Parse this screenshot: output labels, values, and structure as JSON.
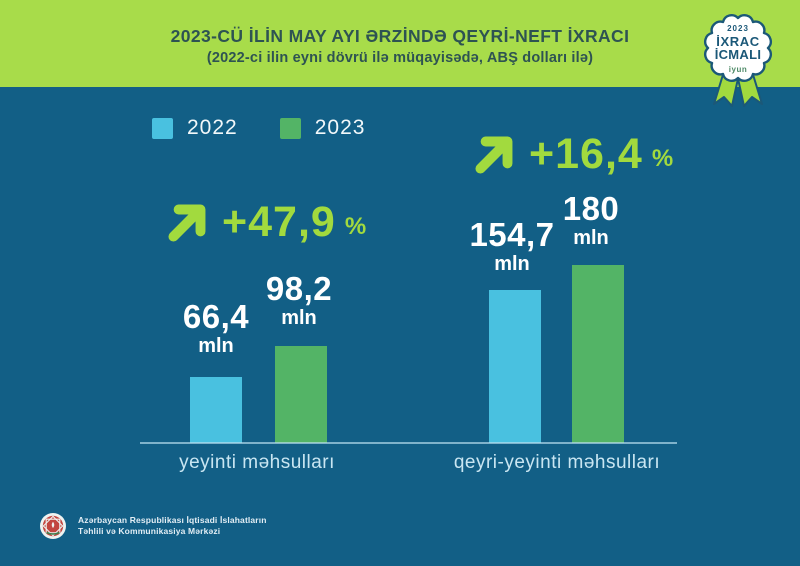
{
  "badge": {
    "year": "2023",
    "title_line1": "İXRAC",
    "title_line2": "İCMALI",
    "month": "iyun"
  },
  "chart_data": {
    "type": "bar",
    "title": "2023-CÜ İLİN MAY AYI ƏRZİNDƏ QEYRİ-NEFT İXRACI",
    "subtitle": "(2022-ci ilin eyni dövrü ilə müqayisədə, ABŞ dolları ilə)",
    "unit_label": "mln",
    "categories": [
      "yeyinti məhsulları",
      "qeyri-yeyinti məhsulları"
    ],
    "series": [
      {
        "name": "2022",
        "color": "#49c1e0",
        "values": [
          66.4,
          154.7
        ],
        "value_labels": [
          "66,4",
          "154,7"
        ]
      },
      {
        "name": "2023",
        "color": "#53b466",
        "values": [
          98.2,
          180
        ],
        "value_labels": [
          "98,2",
          "180"
        ]
      }
    ],
    "changes": [
      "+47,9",
      "+16,4"
    ],
    "percent_sign": "%",
    "legend_position": "top-left",
    "grid": false,
    "ylim": [
      0,
      190
    ]
  },
  "footer": {
    "org_line1": "Azərbaycan Respublikası İqtisadi İslahatların",
    "org_line2": "Təhlili və Kommunikasiya Mərkəzi"
  },
  "colors": {
    "background_band": "#a8dc4a",
    "panel": "#125f86",
    "bar_2022": "#49c1e0",
    "bar_2023": "#53b466",
    "accent_lime": "#a2da3e",
    "badge_text": "#1b5878",
    "title_text": "#2e5352"
  }
}
